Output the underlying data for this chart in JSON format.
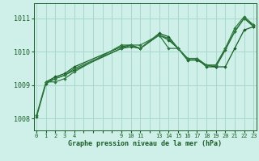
{
  "background_color": "#cef0e8",
  "grid_color": "#aad8cc",
  "line_color_dark": "#1a5c28",
  "line_color_medium": "#2d7a3e",
  "ylabel_ticks": [
    1008,
    1009,
    1010,
    1011
  ],
  "xlim": [
    -0.3,
    23.3
  ],
  "ylim": [
    1007.65,
    1011.45
  ],
  "xlabel": "Graphe pression niveau de la mer (hPa)",
  "series": [
    {
      "x": [
        0,
        1,
        2,
        3,
        4,
        9,
        10,
        11,
        13,
        14,
        15,
        16,
        17,
        18,
        19,
        20,
        21,
        22,
        23
      ],
      "y": [
        1008.05,
        1009.05,
        1009.2,
        1009.3,
        1009.45,
        1010.1,
        1010.15,
        1010.1,
        1010.5,
        1010.35,
        1010.1,
        1009.8,
        1009.8,
        1009.55,
        1009.55,
        1010.05,
        1010.6,
        1011.0,
        1010.75
      ]
    },
    {
      "x": [
        1,
        2,
        3,
        4,
        9,
        10,
        11,
        13,
        14,
        15,
        16,
        17,
        18,
        19,
        20,
        21,
        22,
        23
      ],
      "y": [
        1009.1,
        1009.25,
        1009.35,
        1009.55,
        1010.15,
        1010.2,
        1010.1,
        1010.55,
        1010.45,
        1010.1,
        1009.75,
        1009.75,
        1009.6,
        1009.55,
        1009.55,
        1010.1,
        1010.65,
        1010.75
      ]
    },
    {
      "x": [
        1,
        2,
        3,
        4,
        9,
        10,
        11,
        13,
        14,
        16,
        17,
        18,
        19,
        20,
        21,
        22,
        23
      ],
      "y": [
        1009.1,
        1009.2,
        1009.3,
        1009.5,
        1010.1,
        1010.2,
        1010.2,
        1010.5,
        1010.4,
        1009.8,
        1009.8,
        1009.6,
        1009.6,
        1010.1,
        1010.7,
        1011.05,
        1010.8
      ]
    },
    {
      "x": [
        0,
        1,
        2,
        3,
        4,
        9,
        10,
        11,
        13,
        14,
        15,
        16,
        17,
        18,
        19,
        20,
        21,
        22,
        23
      ],
      "y": [
        1008.1,
        1009.1,
        1009.1,
        1009.2,
        1009.4,
        1010.2,
        1010.2,
        1010.1,
        1010.5,
        1010.1,
        1010.1,
        1009.8,
        1009.8,
        1009.6,
        1009.6,
        1010.1,
        1010.6,
        1011.0,
        1010.8
      ]
    }
  ],
  "xtick_map": {
    "0": "0",
    "1": "1",
    "2": "2",
    "3": "3",
    "4": "4",
    "9": "9",
    "10": "10",
    "11": "11",
    "13": "13",
    "14": "14",
    "15": "15",
    "16": "16",
    "17": "17",
    "18": "18",
    "19": "19",
    "20": "20",
    "21": "21",
    "22": "22",
    "23": "23"
  }
}
